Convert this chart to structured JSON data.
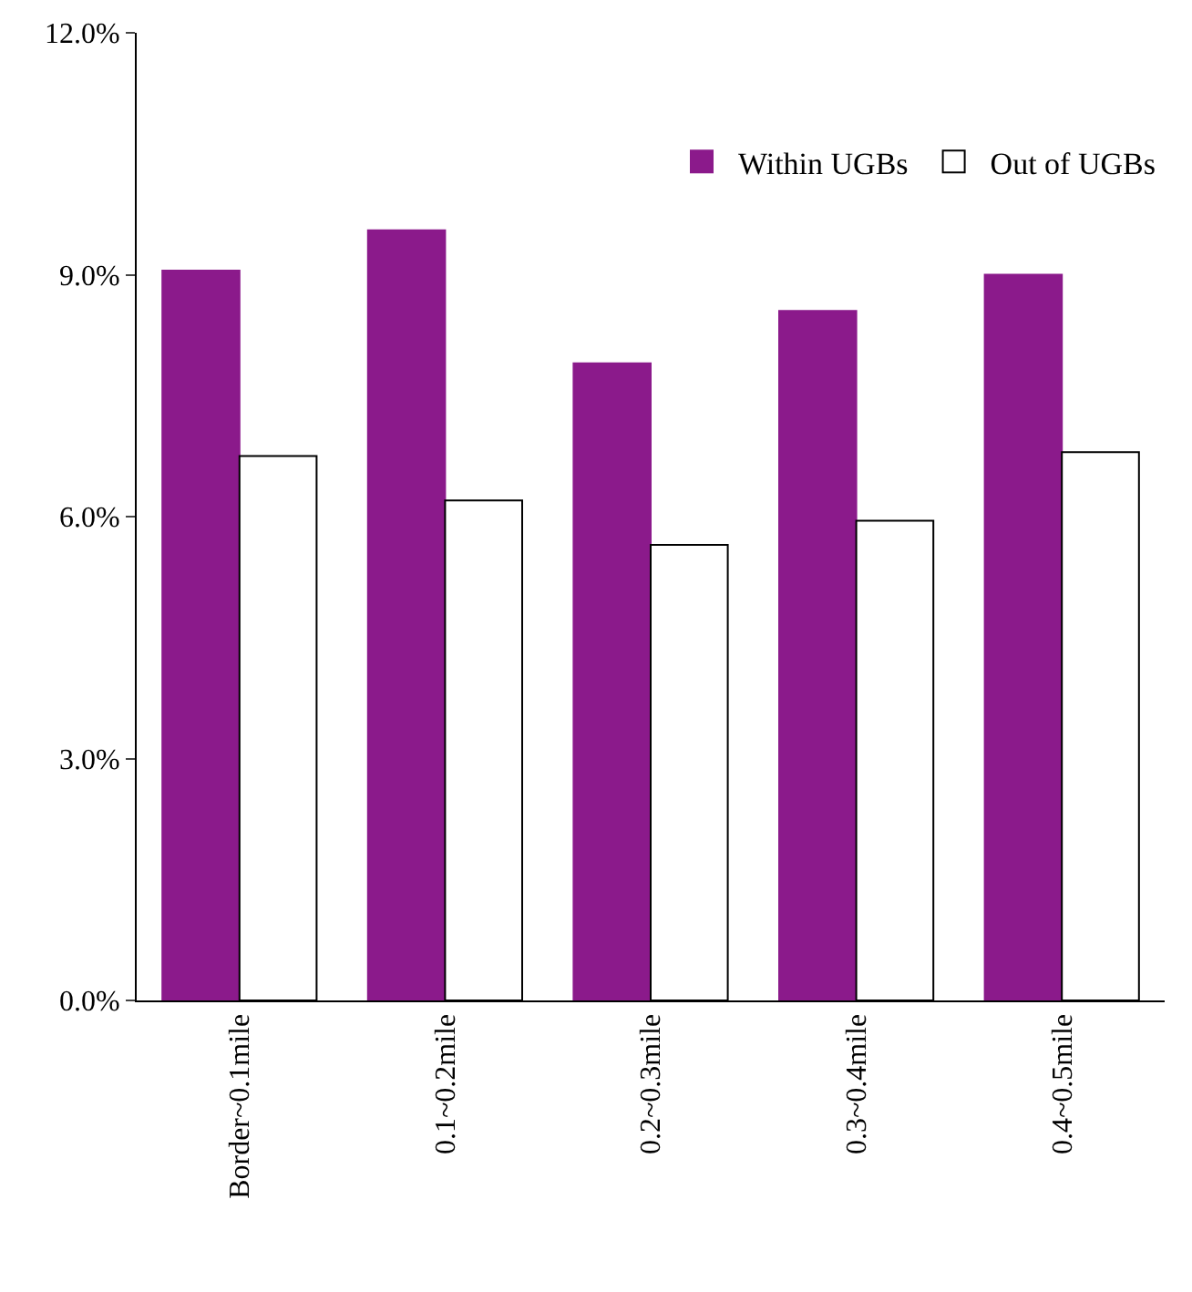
{
  "chart_data": {
    "type": "bar",
    "categories": [
      "Border~0.1mile",
      "0.1~0.2mile",
      "0.2~0.3mile",
      "0.3~0.4mile",
      "0.4~0.5mile"
    ],
    "series": [
      {
        "name": "Within UGBs",
        "color": "#8b1a8b",
        "values": [
          9.05,
          9.55,
          7.9,
          8.55,
          9.0
        ]
      },
      {
        "name": "Out of UGBs",
        "color": "#ffffff",
        "values": [
          6.75,
          6.2,
          5.65,
          5.95,
          6.8
        ]
      }
    ],
    "ylim": [
      0,
      12
    ],
    "yticks": [
      {
        "value": 0,
        "label": "0.0%"
      },
      {
        "value": 3,
        "label": "3.0%"
      },
      {
        "value": 6,
        "label": "6.0%"
      },
      {
        "value": 9,
        "label": "9.0%"
      },
      {
        "value": 12,
        "label": "12.0%"
      }
    ],
    "legend": "top right"
  }
}
